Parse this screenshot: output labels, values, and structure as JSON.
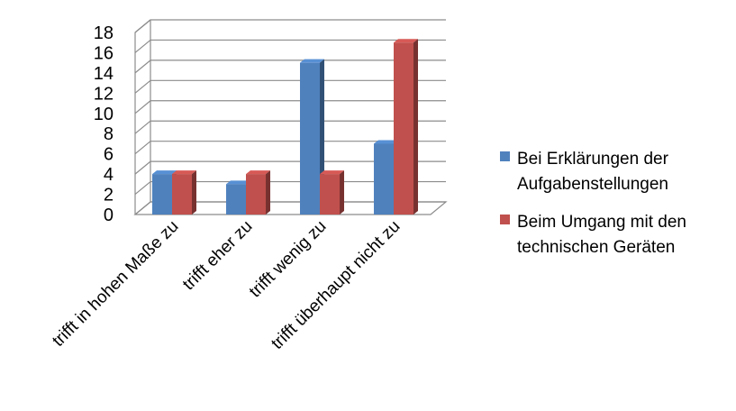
{
  "chart_data": {
    "type": "bar",
    "categories": [
      "trifft in hohen Maße zu",
      "trifft eher zu",
      "trifft wenig zu",
      "trifft überhaupt nicht zu"
    ],
    "series": [
      {
        "name": "Bei Erklärungen der Aufgabenstellungen",
        "legend_lines": [
          "Bei Erklärungen der",
          "Aufgabenstellungen"
        ],
        "values": [
          4,
          3,
          15,
          7
        ],
        "color": "#4f81bd"
      },
      {
        "name": "Beim Umgang mit den technischen Geräten",
        "legend_lines": [
          "Beim Umgang mit den",
          "technischen Geräten"
        ],
        "values": [
          4,
          4,
          4,
          17
        ],
        "color": "#c0504d"
      }
    ],
    "yticks": [
      0,
      2,
      4,
      6,
      8,
      10,
      12,
      14,
      16,
      18
    ],
    "ylim": [
      0,
      18
    ],
    "grid": true,
    "style": "3d-clustered-column",
    "legend_position": "right"
  }
}
